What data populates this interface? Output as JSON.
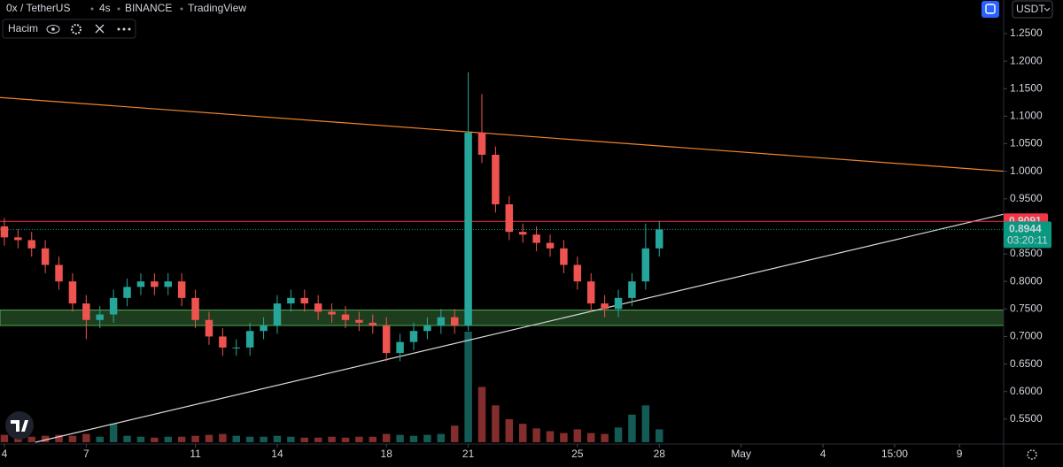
{
  "chart_data": {
    "type": "candlestick",
    "symbol": "0x / TetherUS",
    "interval": "4s",
    "exchange": "BINANCE",
    "source": "TradingView",
    "indicator": "Hacim",
    "currency": "USDT",
    "up_color": "#26a69a",
    "down_color": "#ef5350",
    "x": [
      4,
      4.5,
      5,
      5.5,
      6,
      6.5,
      7,
      7.5,
      8,
      8.5,
      9,
      9.5,
      10,
      10.5,
      11,
      11.5,
      12,
      12.5,
      13,
      13.5,
      14,
      14.5,
      15,
      15.5,
      16,
      16.5,
      17,
      17.5,
      18,
      18.5,
      19,
      19.5,
      20,
      20.5,
      21,
      21.5,
      22,
      22.5,
      23,
      23.5,
      24,
      24.5,
      25,
      25.5,
      26,
      26.5,
      27,
      27.5,
      28
    ],
    "open": [
      0.9,
      0.88,
      0.875,
      0.86,
      0.83,
      0.8,
      0.76,
      0.73,
      0.74,
      0.77,
      0.79,
      0.8,
      0.79,
      0.8,
      0.77,
      0.73,
      0.7,
      0.68,
      0.68,
      0.71,
      0.72,
      0.76,
      0.77,
      0.76,
      0.745,
      0.74,
      0.73,
      0.725,
      0.72,
      0.67,
      0.69,
      0.71,
      0.72,
      0.735,
      0.72,
      1.07,
      1.03,
      0.94,
      0.89,
      0.885,
      0.87,
      0.86,
      0.83,
      0.8,
      0.76,
      0.75,
      0.77,
      0.8,
      0.86
    ],
    "high": [
      0.915,
      0.895,
      0.89,
      0.875,
      0.845,
      0.815,
      0.775,
      0.755,
      0.785,
      0.805,
      0.815,
      0.815,
      0.815,
      0.815,
      0.785,
      0.745,
      0.715,
      0.695,
      0.725,
      0.735,
      0.775,
      0.785,
      0.785,
      0.775,
      0.76,
      0.755,
      0.745,
      0.74,
      0.735,
      0.705,
      0.725,
      0.735,
      0.75,
      0.75,
      1.18,
      1.14,
      1.045,
      0.955,
      0.905,
      0.9,
      0.885,
      0.875,
      0.845,
      0.815,
      0.775,
      0.785,
      0.815,
      0.905,
      0.91
    ],
    "low": [
      0.865,
      0.86,
      0.845,
      0.815,
      0.785,
      0.745,
      0.695,
      0.715,
      0.725,
      0.755,
      0.775,
      0.775,
      0.775,
      0.755,
      0.715,
      0.685,
      0.665,
      0.665,
      0.665,
      0.695,
      0.705,
      0.745,
      0.745,
      0.73,
      0.725,
      0.715,
      0.71,
      0.705,
      0.655,
      0.655,
      0.675,
      0.695,
      0.705,
      0.705,
      0.71,
      1.015,
      0.925,
      0.875,
      0.87,
      0.855,
      0.845,
      0.815,
      0.785,
      0.745,
      0.735,
      0.735,
      0.755,
      0.785,
      0.845
    ],
    "close": [
      0.88,
      0.875,
      0.86,
      0.83,
      0.8,
      0.76,
      0.73,
      0.74,
      0.77,
      0.79,
      0.8,
      0.79,
      0.8,
      0.77,
      0.73,
      0.7,
      0.68,
      0.68,
      0.71,
      0.72,
      0.76,
      0.77,
      0.76,
      0.745,
      0.74,
      0.73,
      0.725,
      0.72,
      0.67,
      0.69,
      0.71,
      0.72,
      0.735,
      0.72,
      1.07,
      1.03,
      0.94,
      0.89,
      0.885,
      0.87,
      0.86,
      0.83,
      0.8,
      0.76,
      0.75,
      0.77,
      0.8,
      0.86,
      0.8944
    ],
    "volume": [
      8,
      6,
      6,
      7,
      8,
      7,
      9,
      6,
      20,
      7,
      6,
      5,
      6,
      6,
      7,
      8,
      9,
      7,
      6,
      6,
      7,
      6,
      5,
      5,
      6,
      5,
      6,
      6,
      9,
      8,
      7,
      8,
      9,
      18,
      120,
      60,
      40,
      25,
      20,
      15,
      12,
      10,
      14,
      10,
      9,
      16,
      30,
      40,
      14
    ],
    "xlim": [
      3.84,
      40.62
    ],
    "ylim": [
      0.508,
      1.311
    ],
    "xticks": [
      4,
      7,
      11,
      14,
      18,
      21,
      25,
      28,
      {
        "value": 31,
        "label": "May"
      },
      {
        "value": 34,
        "label": "4"
      },
      {
        "value": 36.625,
        "label": "15:00"
      },
      {
        "value": 39,
        "label": "9"
      }
    ],
    "yticks": [
      {
        "value": 0.55,
        "label": "0.5500"
      },
      {
        "value": 0.6,
        "label": "0.6000"
      },
      {
        "value": 0.65,
        "label": "0.6500"
      },
      {
        "value": 0.7,
        "label": "0.7000"
      },
      {
        "value": 0.75,
        "label": "0.7500"
      },
      {
        "value": 0.8,
        "label": "0.8000"
      },
      {
        "value": 0.85,
        "label": "0.8500"
      },
      {
        "value": 0.9,
        "label": "0.9000"
      },
      {
        "value": 0.95,
        "label": "0.9500"
      },
      {
        "value": 1.0,
        "label": "1.0000"
      },
      {
        "value": 1.05,
        "label": "1.0500"
      },
      {
        "value": 1.1,
        "label": "1.1000"
      },
      {
        "value": 1.15,
        "label": "1.1500"
      },
      {
        "value": 1.2,
        "label": "1.2000"
      },
      {
        "value": 1.25,
        "label": "1.2500"
      }
    ],
    "trendlines": [
      {
        "x": [
          3.84,
          40.62
        ],
        "y": [
          1.134,
          1.0
        ],
        "color": "#f0852d"
      },
      {
        "x": [
          5.14,
          40.62
        ],
        "y": [
          0.508,
          0.922
        ],
        "color": "#d9d9d9"
      }
    ],
    "zone": {
      "from": 0.72,
      "to": 0.748,
      "color": "#1e3d1e",
      "border": "#4caf50"
    },
    "level": {
      "value": 0.9091,
      "label": "0.9091",
      "color": "#f23645"
    },
    "last": {
      "value": 0.8944,
      "label": "0.8944",
      "countdown": "03:20:11",
      "color": "#089981"
    }
  }
}
